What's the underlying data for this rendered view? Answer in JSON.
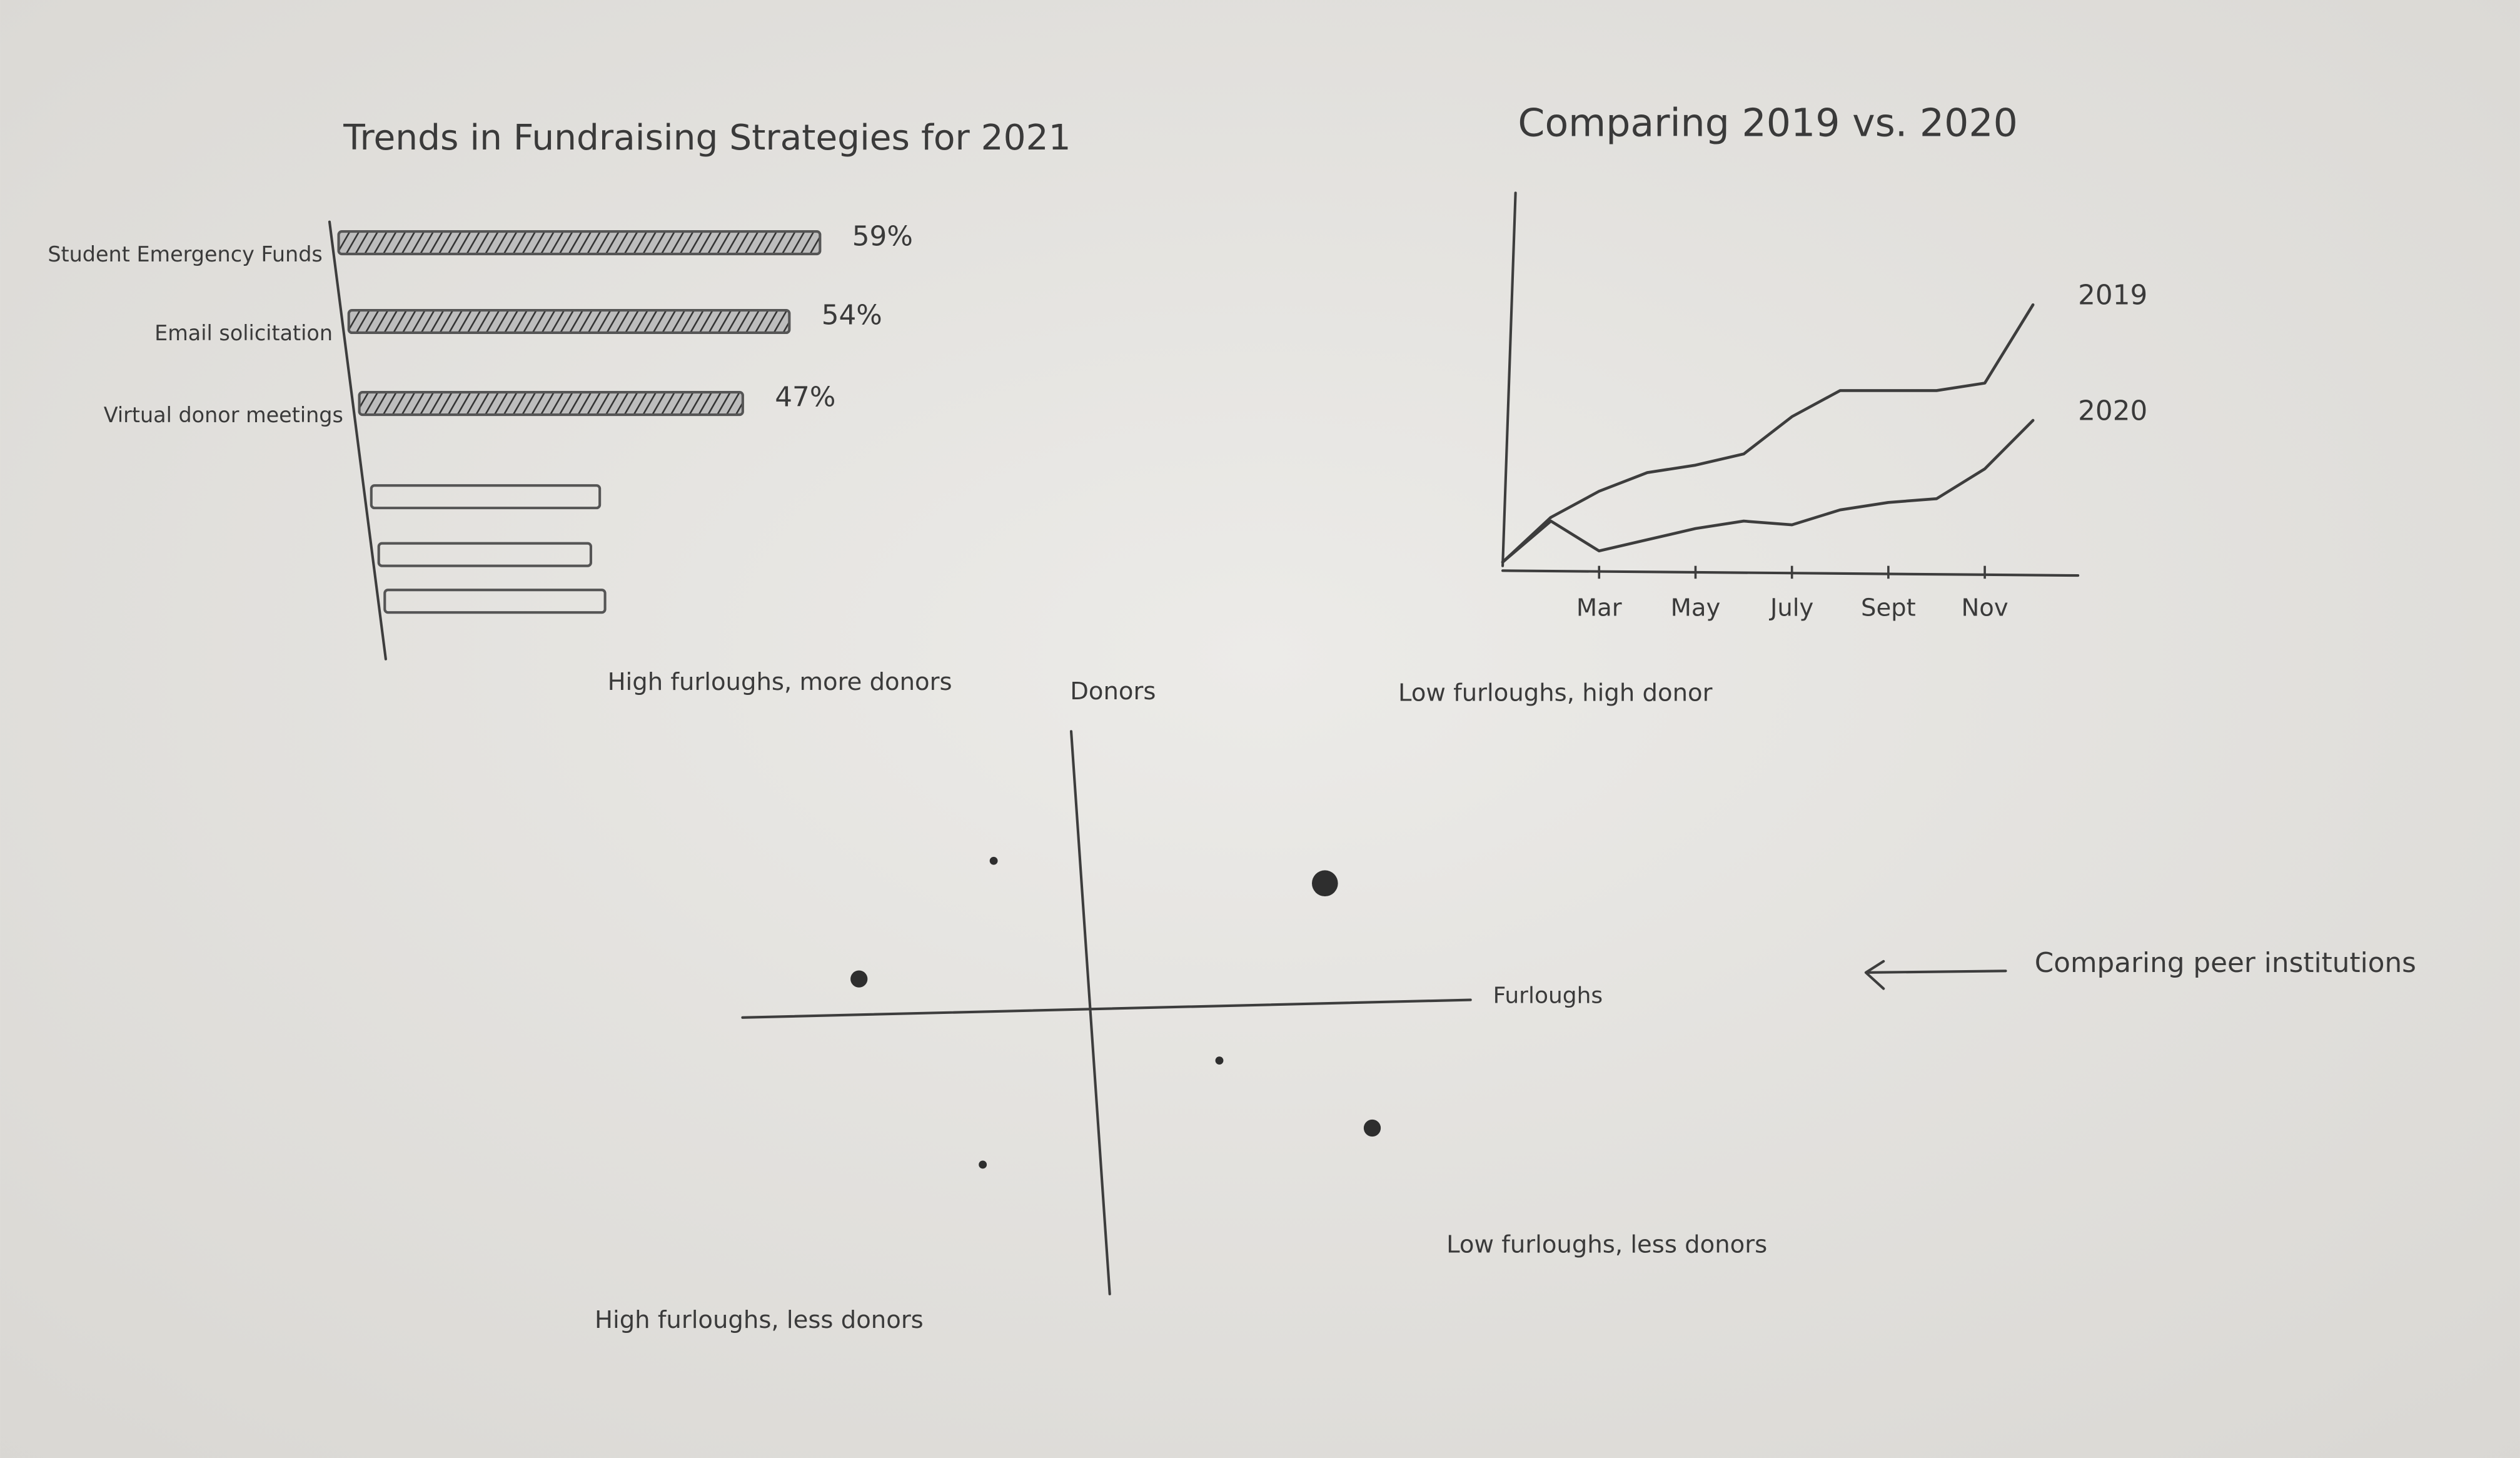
{
  "chart_data": [
    {
      "type": "bar",
      "title": "Trends in Fundraising Strategies for 2021",
      "categories": [
        "Student Emergency Funds",
        "Email solicitation",
        "Virtual donor meetings",
        null,
        null,
        null
      ],
      "values": [
        59,
        54,
        47,
        28,
        26,
        27
      ],
      "value_labels": [
        "59%",
        "54%",
        "47%",
        null,
        null,
        null
      ],
      "xlim": [
        0,
        65
      ],
      "color": "#555555"
    },
    {
      "type": "line",
      "title": "Comparing 2019 vs. 2020",
      "categories": [
        null,
        null,
        "Mar",
        null,
        "May",
        null,
        "July",
        null,
        "Sept",
        null,
        "Nov",
        null
      ],
      "series": [
        {
          "name": "2019",
          "color": "#3d3d3d",
          "values": [
            1,
            13,
            20,
            25,
            27,
            30,
            40,
            47,
            47,
            47,
            49,
            70
          ]
        },
        {
          "name": "2020",
          "color": "#3d3d3d",
          "values": [
            1,
            12,
            4,
            7,
            10,
            12,
            11,
            15,
            17,
            18,
            26,
            39
          ]
        }
      ],
      "ylim": [
        0,
        100
      ]
    },
    {
      "type": "scatter",
      "x_label": "Furloughs",
      "y_label": "Donors",
      "x": [
        -0.31,
        0.6,
        -0.68,
        0.31,
        0.73,
        -0.34
      ],
      "y": [
        0.54,
        0.46,
        0.12,
        -0.17,
        -0.41,
        -0.54
      ],
      "sizes": [
        1,
        3,
        2,
        1,
        2,
        1
      ],
      "xlim": [
        -1,
        1
      ],
      "ylim": [
        -1,
        1
      ],
      "annotations": [
        "High furloughs, more donors",
        "Low furloughs, high donor",
        "Low furloughs, less donors",
        "High furloughs, less donors",
        "Comparing peer institutions"
      ]
    }
  ]
}
